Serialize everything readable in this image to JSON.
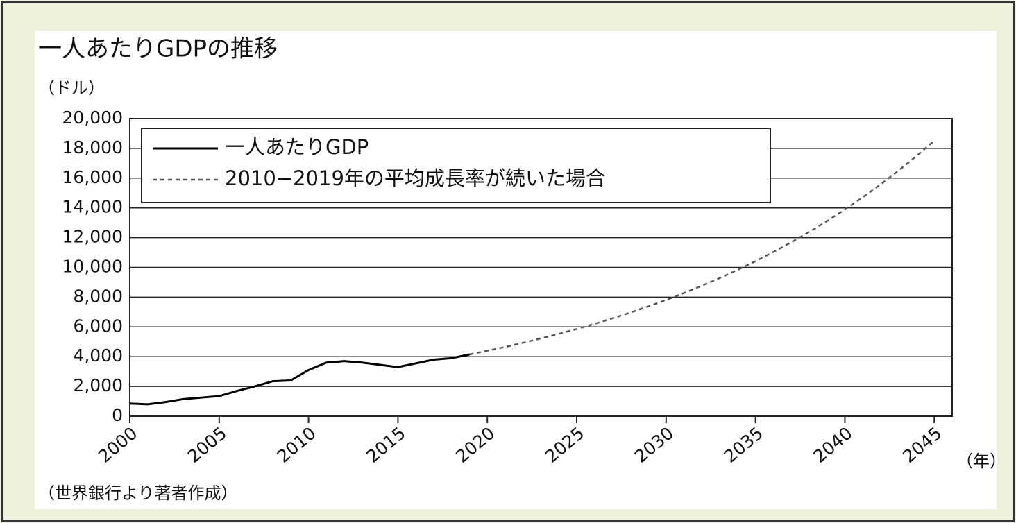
{
  "chart_data": {
    "type": "line",
    "title": "一人あたりGDPの推移",
    "y_label": "（ドル）",
    "x_label": "（年）",
    "source": "（世界銀行より著者作成）",
    "xlim": [
      2000,
      2046
    ],
    "xticks": [
      2000,
      2005,
      2010,
      2015,
      2020,
      2025,
      2030,
      2035,
      2040,
      2045
    ],
    "ylim": [
      0,
      20000
    ],
    "yticks": [
      0,
      {
        "value": 2000,
        "label": "2,000"
      },
      {
        "value": 4000,
        "label": "4,000"
      },
      {
        "value": 6000,
        "label": "6,000"
      },
      {
        "value": 8000,
        "label": "8,000"
      },
      {
        "value": 10000,
        "label": "10,000"
      },
      {
        "value": 12000,
        "label": "12,000"
      },
      {
        "value": 14000,
        "label": "14,000"
      },
      {
        "value": 16000,
        "label": "16,000"
      },
      {
        "value": 18000,
        "label": "18,000"
      },
      {
        "value": 20000,
        "label": "20,000"
      }
    ],
    "grid": true,
    "legend": "top-left",
    "series": [
      {
        "name": "一人あたりGDP",
        "color": "#000000",
        "style": "solid",
        "x": [
          2000,
          2001,
          2002,
          2003,
          2004,
          2005,
          2006,
          2007,
          2008,
          2009,
          2010,
          2011,
          2012,
          2013,
          2014,
          2015,
          2016,
          2017,
          2018,
          2019
        ],
        "values": [
          850,
          800,
          950,
          1150,
          1250,
          1350,
          1700,
          2000,
          2350,
          2400,
          3100,
          3600,
          3700,
          3600,
          3450,
          3300,
          3550,
          3800,
          3900,
          4150
        ]
      },
      {
        "name": "2010−2019年の平均成長率が続いた場合",
        "color": "#555555",
        "style": "dotted",
        "x": [
          2019,
          2020,
          2021,
          2022,
          2023,
          2024,
          2025,
          2026,
          2027,
          2028,
          2029,
          2030,
          2031,
          2032,
          2033,
          2034,
          2035,
          2036,
          2037,
          2038,
          2039,
          2040,
          2041,
          2042,
          2043,
          2044,
          2045
        ],
        "values": [
          4150,
          4396,
          4656,
          4932,
          5224,
          5533,
          5861,
          6208,
          6575,
          6965,
          7377,
          7814,
          8277,
          8767,
          9286,
          9836,
          10418,
          11035,
          11688,
          12380,
          13113,
          13889,
          14712,
          15583,
          16505,
          17482,
          18518
        ]
      }
    ]
  }
}
